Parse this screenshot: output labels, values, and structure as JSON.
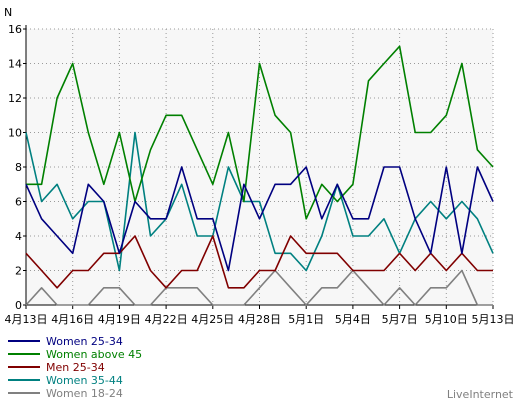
{
  "chart_data": {
    "type": "line",
    "ylabel": "N",
    "ylim": [
      0,
      16
    ],
    "yticks": [
      0,
      2,
      4,
      6,
      8,
      10,
      12,
      14,
      16
    ],
    "grid": true,
    "legend_position": "bottom-left",
    "x": [
      "4月13日",
      "4月14日",
      "4月15日",
      "4月16日",
      "4月17日",
      "4月18日",
      "4月19日",
      "4月20日",
      "4月21日",
      "4月22日",
      "4月23日",
      "4月24日",
      "4月25日",
      "4月26日",
      "4月27日",
      "4月28日",
      "4月29日",
      "4月30日",
      "5月1日",
      "5月2日",
      "5月3日",
      "5月4日",
      "5月5日",
      "5月6日",
      "5月7日",
      "5月8日",
      "5月9日",
      "5月10日",
      "5月11日",
      "5月12日",
      "5月13日"
    ],
    "xtick_labels": [
      "4月13日",
      "4月16日",
      "4月19日",
      "4月22日",
      "4月25日",
      "4月28日",
      "5月1日",
      "5月4日",
      "5月7日",
      "5月10日",
      "5月13日"
    ],
    "series": [
      {
        "name": "Women 25-34",
        "color": "#000080",
        "values": [
          7,
          5,
          4,
          3,
          7,
          6,
          3,
          6,
          5,
          5,
          8,
          5,
          5,
          2,
          7,
          5,
          7,
          7,
          8,
          5,
          7,
          5,
          5,
          8,
          8,
          5,
          3,
          8,
          3,
          8,
          6
        ]
      },
      {
        "name": "Women above 45",
        "color": "#008000",
        "values": [
          7,
          7,
          12,
          14,
          10,
          7,
          10,
          6,
          9,
          11,
          11,
          9,
          7,
          10,
          6,
          14,
          11,
          10,
          5,
          7,
          6,
          7,
          13,
          14,
          15,
          10,
          10,
          11,
          14,
          9,
          8
        ]
      },
      {
        "name": "Men 25-34",
        "color": "#800000",
        "values": [
          3,
          2,
          1,
          2,
          2,
          3,
          3,
          4,
          2,
          1,
          2,
          2,
          4,
          1,
          1,
          2,
          2,
          4,
          3,
          3,
          3,
          2,
          2,
          2,
          3,
          2,
          3,
          2,
          3,
          2,
          2
        ]
      },
      {
        "name": "Women 35-44",
        "color": "#008080",
        "values": [
          10,
          6,
          7,
          5,
          6,
          6,
          2,
          10,
          4,
          5,
          7,
          4,
          4,
          8,
          6,
          6,
          3,
          3,
          2,
          4,
          7,
          4,
          4,
          5,
          3,
          5,
          6,
          5,
          6,
          5,
          3
        ]
      },
      {
        "name": "Women 18-24",
        "color": "#808080",
        "values": [
          0,
          1,
          0,
          0,
          0,
          1,
          1,
          0,
          0,
          1,
          1,
          1,
          0,
          0,
          0,
          1,
          2,
          1,
          0,
          1,
          1,
          2,
          1,
          0,
          1,
          0,
          1,
          1,
          2,
          0,
          0
        ]
      }
    ]
  },
  "brand": {
    "text": "LiveInternet"
  }
}
